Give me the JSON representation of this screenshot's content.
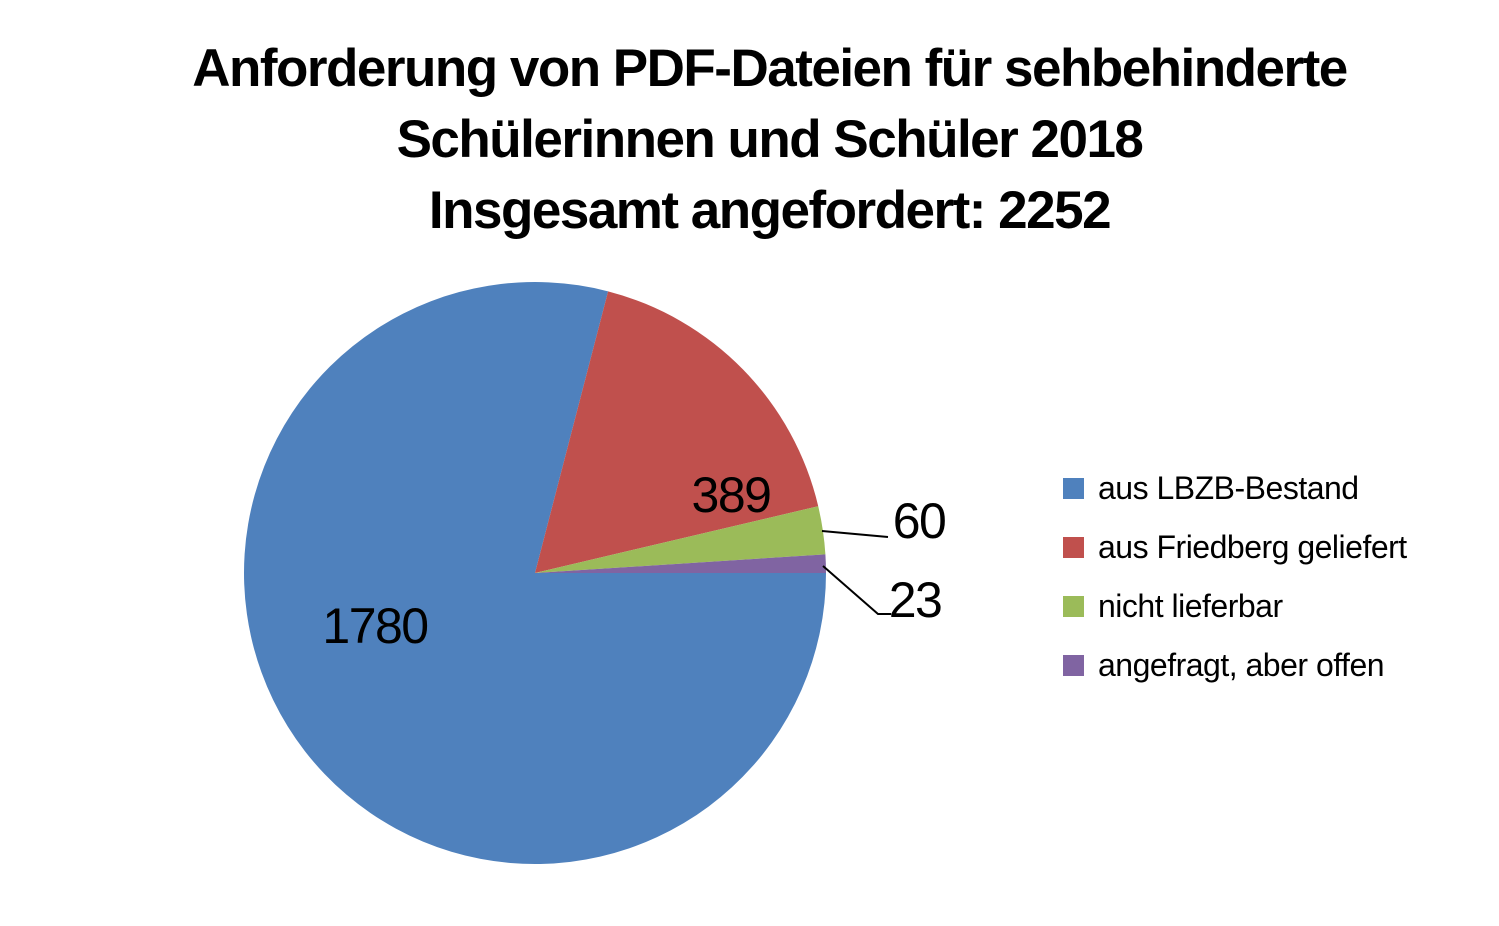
{
  "title": {
    "line1": "Anforderung von PDF-Dateien für sehbehinderte",
    "line2": "Schülerinnen und Schüler 2018",
    "line3": "Insgesamt angefordert: 2252"
  },
  "chart_data": {
    "type": "pie",
    "title": "Anforderung von PDF-Dateien für sehbehinderte Schülerinnen und Schüler 2018 — Insgesamt angefordert: 2252",
    "total": 2252,
    "start_angle_deg_clockwise_from_top": 90,
    "direction": "clockwise",
    "legend_position": "right",
    "grid": false,
    "slices": [
      {
        "label": "aus LBZB-Bestand",
        "value": 1780,
        "color": "#4F81BD"
      },
      {
        "label": "aus Friedberg geliefert",
        "value": 389,
        "color": "#C0504D"
      },
      {
        "label": "nicht lieferbar",
        "value": 60,
        "color": "#9BBB59"
      },
      {
        "label": "angefragt, aber offen",
        "value": 23,
        "color": "#8064A2"
      }
    ]
  },
  "colors": {
    "background": "#FFFFFF",
    "text": "#000000",
    "leader_line": "#000000"
  }
}
